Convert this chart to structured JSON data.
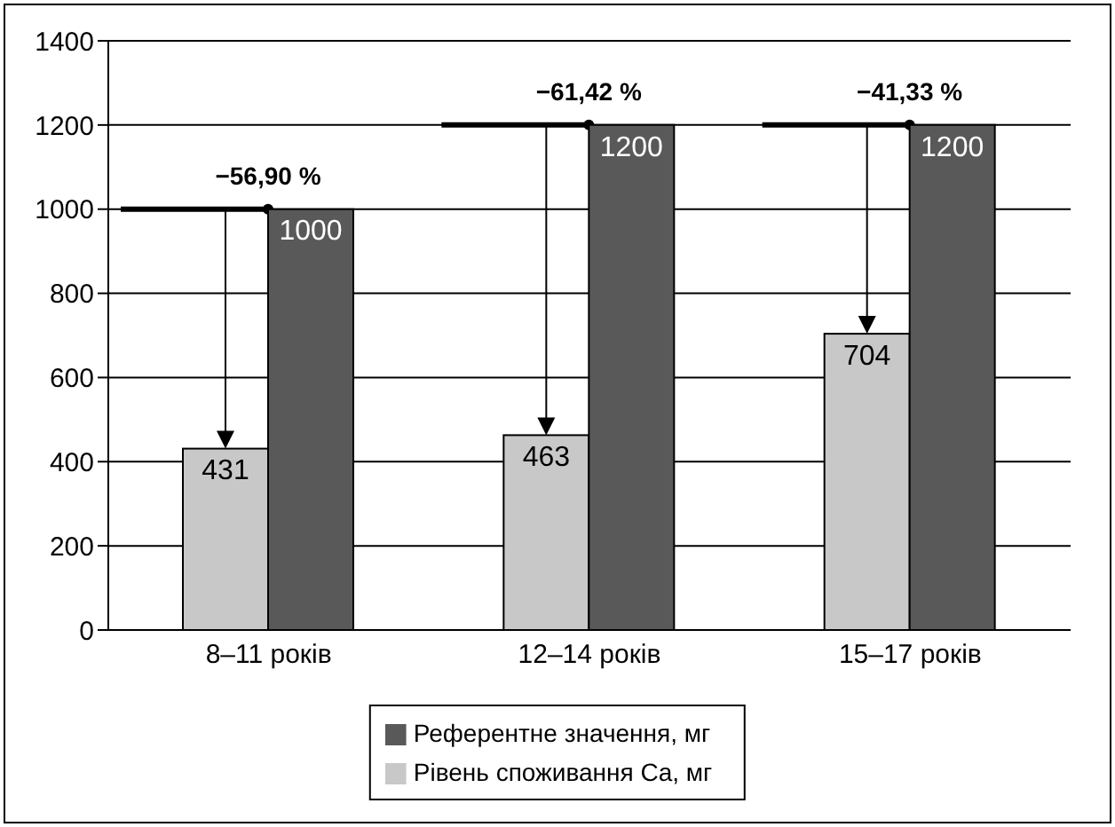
{
  "chart_data": {
    "type": "bar",
    "categories": [
      "8–11 років",
      "12–14 років",
      "15–17 років"
    ],
    "series": [
      {
        "name": "Рівень споживання Ca, мг",
        "color": "#c8c8c8",
        "values": [
          431,
          463,
          704
        ]
      },
      {
        "name": "Референтне значення, мг",
        "color": "#595959",
        "values": [
          1000,
          1200,
          1200
        ]
      }
    ],
    "ylim": [
      0,
      1400
    ],
    "yticks": [
      0,
      200,
      400,
      600,
      800,
      1000,
      1200,
      1400
    ],
    "grid": "y",
    "legend": "bottom",
    "data_labels": true,
    "annotations": [
      {
        "text": "−56,90 %",
        "x": "8–11 років",
        "y": 1000
      },
      {
        "text": "−61,42 %",
        "x": "12–14 років",
        "y": 1200
      },
      {
        "text": "−41,33 %",
        "x": "15–17 років",
        "y": 1200
      }
    ]
  }
}
